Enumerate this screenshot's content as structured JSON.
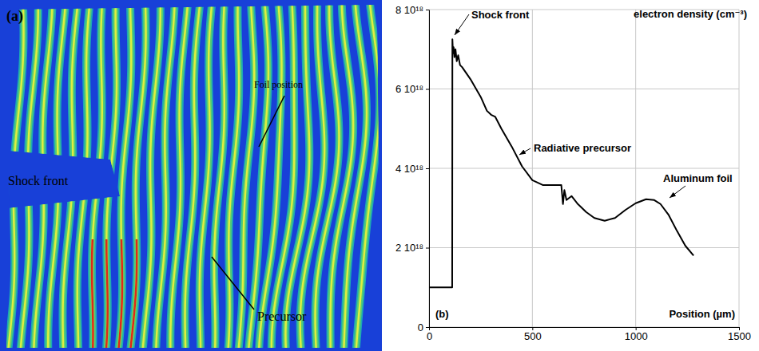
{
  "image_panel": {
    "label": "(a)",
    "annotations": [
      "Foil position",
      "Shock front",
      "Precursor"
    ]
  },
  "chart_data": {
    "type": "line",
    "panel_label": "(b)",
    "y_label": "electron density (cm⁻³)",
    "x_label": "Position (µm)",
    "annotations": [
      "Shock front",
      "Radiative precursor",
      "Aluminum foil"
    ],
    "x": [
      0,
      108,
      112,
      113,
      116,
      119,
      123,
      128,
      134,
      141,
      150,
      160,
      200,
      250,
      280,
      300,
      320,
      350,
      400,
      450,
      500,
      550,
      600,
      640,
      648,
      655,
      665,
      690,
      720,
      760,
      800,
      850,
      900,
      950,
      1000,
      1050,
      1090,
      1120,
      1160,
      1200,
      1240,
      1280
    ],
    "series": [
      {
        "color": "#000000",
        "values": [
          1e+18,
          1e+18,
          1e+18,
          7.25e+18,
          6.9e+18,
          7.05e+18,
          6.8e+18,
          7e+18,
          6.7e+18,
          6.85e+18,
          6.6e+18,
          6.55e+18,
          6.25e+18,
          5.8e+18,
          5.45e+18,
          5.35e+18,
          5.3e+18,
          5e+18,
          4.55e+18,
          4.05e+18,
          3.7e+18,
          3.58e+18,
          3.58e+18,
          3.58e+18,
          3.1e+18,
          3.45e+18,
          3.2e+18,
          3.3e+18,
          3.1e+18,
          2.9e+18,
          2.75e+18,
          2.68e+18,
          2.75e+18,
          2.95e+18,
          3.12e+18,
          3.22e+18,
          3.2e+18,
          3.1e+18,
          2.82e+18,
          2.42e+18,
          2.05e+18,
          1.8e+18
        ]
      }
    ],
    "xlim": [
      0,
      1500
    ],
    "xticks": [
      0,
      500,
      1000,
      1500
    ],
    "ylim": [
      0,
      8e+18
    ],
    "yticks": [
      0,
      {
        "value": 2e+18,
        "label": "2 10¹⁸"
      },
      {
        "value": 4e+18,
        "label": "4 10¹⁸"
      },
      {
        "value": 6e+18,
        "label": "6 10¹⁸"
      },
      {
        "value": 8e+18,
        "label": "8 10¹⁸"
      }
    ],
    "grid": true
  }
}
